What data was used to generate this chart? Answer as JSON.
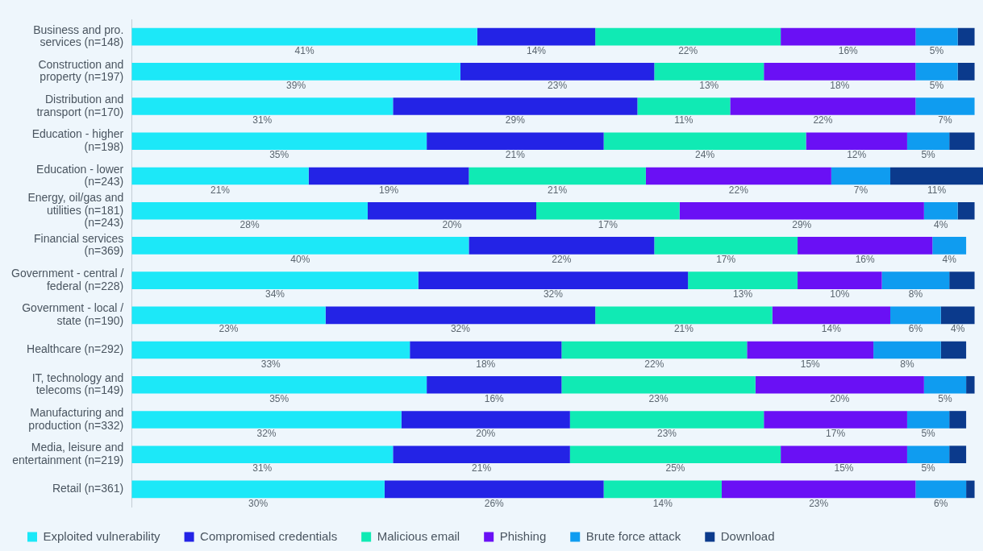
{
  "chart_data": {
    "type": "bar",
    "orientation": "horizontal",
    "stacked": true,
    "categories": [
      "Business and pro. services (n=148)",
      "Construction and property (n=197)",
      "Distribution and transport (n=170)",
      "Education - higher (n=198)",
      "Education - lower (n=243)",
      "Energy, oil/gas and utilities (n=181) (n=243)",
      "Financial services (n=369)",
      "Government - central / federal (n=228)",
      "Government - local / state (n=190)",
      "Healthcare (n=292)",
      "IT, technology and telecoms (n=149)",
      "Manufacturing and production (n=332)",
      "Media, leisure and entertainment (n=219)",
      "Retail (n=361)"
    ],
    "series": [
      {
        "name": "Exploited vulnerability",
        "color": "#1ce8f8",
        "values": [
          41,
          39,
          31,
          35,
          21,
          28,
          40,
          34,
          23,
          33,
          35,
          32,
          31,
          30
        ],
        "value_labels": [
          "41%",
          "39%",
          "31%",
          "35%",
          "21%",
          "28%",
          "40%",
          "34%",
          "23%",
          "33%",
          "35%",
          "32%",
          "31%",
          "30%"
        ]
      },
      {
        "name": "Compromised credentials",
        "color": "#2323e6",
        "values": [
          14,
          23,
          29,
          21,
          19,
          20,
          22,
          32,
          32,
          18,
          16,
          20,
          21,
          26
        ],
        "value_labels": [
          "14%",
          "23%",
          "29%",
          "21%",
          "19%",
          "20%",
          "22%",
          "32%",
          "32%",
          "18%",
          "16%",
          "20%",
          "21%",
          "26%"
        ]
      },
      {
        "name": "Malicious email",
        "color": "#10eab4",
        "values": [
          22,
          13,
          11,
          24,
          21,
          17,
          17,
          13,
          21,
          22,
          23,
          23,
          25,
          14
        ],
        "value_labels": [
          "22%",
          "13%",
          "11%",
          "24%",
          "21%",
          "17%",
          "17%",
          "13%",
          "21%",
          "22%",
          "23%",
          "23%",
          "25%",
          "14%"
        ]
      },
      {
        "name": "Phishing",
        "color": "#6a10f5",
        "values": [
          16,
          18,
          22,
          12,
          22,
          29,
          16,
          10,
          14,
          15,
          20,
          17,
          15,
          23
        ],
        "value_labels": [
          "16%",
          "18%",
          "22%",
          "12%",
          "22%",
          "29%",
          "16%",
          "10%",
          "14%",
          "15%",
          "20%",
          "17%",
          "15%",
          "23%"
        ]
      },
      {
        "name": "Brute force attack",
        "color": "#0f9cf0",
        "values": [
          5,
          5,
          7,
          5,
          7,
          4,
          4,
          8,
          6,
          8,
          5,
          5,
          5,
          6
        ],
        "value_labels": [
          "5%",
          "5%",
          "7%",
          "5%",
          "7%",
          "4%",
          "4%",
          "8%",
          "6%",
          "8%",
          "5%",
          "5%",
          "5%",
          "6%"
        ]
      },
      {
        "name": "Download",
        "color": "#0b3a8c",
        "values": [
          2,
          2,
          0,
          3,
          11,
          2,
          0,
          3,
          4,
          3,
          1,
          2,
          2,
          1
        ],
        "value_labels": [
          null,
          null,
          null,
          null,
          "11%",
          null,
          null,
          null,
          "4%",
          null,
          null,
          null,
          null,
          null
        ]
      }
    ],
    "xlim": [
      0,
      101
    ],
    "tick_labels": "y",
    "grid": false,
    "legend": "bottom left"
  }
}
